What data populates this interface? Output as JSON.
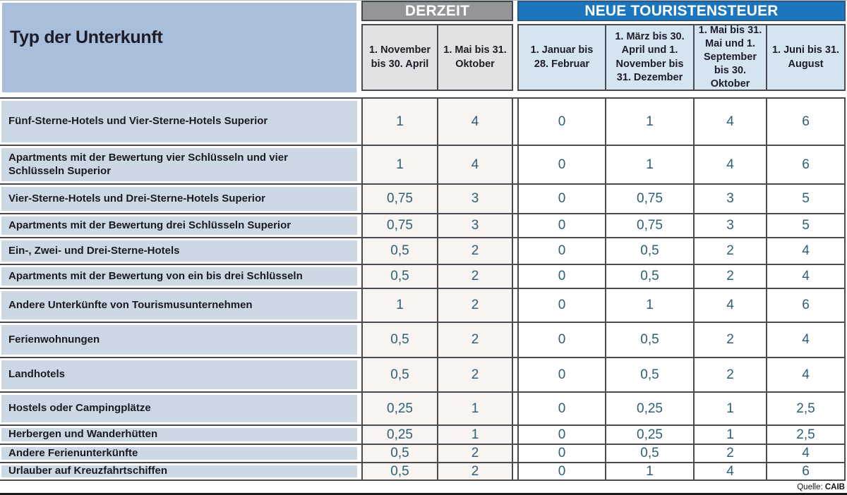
{
  "header": {
    "title": "Typ der Unterkunft",
    "groups": [
      {
        "label": "DERZEIT"
      },
      {
        "label": "NEUE TOURISTENSTEUER"
      }
    ],
    "columns": [
      "1. November bis 30. April",
      "1. Mai bis 31. Oktober",
      "1. Januar bis 28. Februar",
      "1. März bis 30. April und 1. November bis 31. Dezember",
      "1. Mai bis 31. Mai und 1. September bis 30. Oktober",
      "1. Juni bis 31. August"
    ]
  },
  "table": {
    "rows": [
      {
        "label": "Fünf-Sterne-Hotels und Vier-Sterne-Hotels Superior",
        "values": [
          "1",
          "4",
          "0",
          "1",
          "4",
          "6"
        ]
      },
      {
        "label": "Apartments mit der Bewertung vier Schlüsseln und vier Schlüsseln Superior",
        "values": [
          "1",
          "4",
          "0",
          "1",
          "4",
          "6"
        ]
      },
      {
        "label": "Vier-Sterne-Hotels und Drei-Sterne-Hotels Superior",
        "values": [
          "0,75",
          "3",
          "0",
          "0,75",
          "3",
          "5"
        ]
      },
      {
        "label": "Apartments mit der Bewertung drei Schlüsseln Superior",
        "values": [
          "0,75",
          "3",
          "0",
          "0,75",
          "3",
          "5"
        ]
      },
      {
        "label": "Ein-, Zwei- und Drei-Sterne-Hotels",
        "values": [
          "0,5",
          "2",
          "0",
          "0,5",
          "2",
          "4"
        ]
      },
      {
        "label": "Apartments mit der Bewertung von ein bis drei Schlüsseln",
        "values": [
          "0,5",
          "2",
          "0",
          "0,5",
          "2",
          "4"
        ]
      },
      {
        "label": "Andere Unterkünfte von Tourismusunternehmen",
        "values": [
          "1",
          "2",
          "0",
          "1",
          "4",
          "6"
        ]
      },
      {
        "label": "Ferienwohnungen",
        "values": [
          "0,5",
          "2",
          "0",
          "0,5",
          "2",
          "4"
        ]
      },
      {
        "label": "Landhotels",
        "values": [
          "0,5",
          "2",
          "0",
          "0,5",
          "2",
          "4"
        ]
      },
      {
        "label": "Hostels oder Campingplätze",
        "values": [
          "0,25",
          "1",
          "0",
          "0,25",
          "1",
          "2,5"
        ]
      },
      {
        "label": "Herbergen und Wanderhütten",
        "values": [
          "0,25",
          "1",
          "0",
          "0,25",
          "1",
          "2,5"
        ]
      },
      {
        "label": "Andere Ferienunterkünfte",
        "values": [
          "0,5",
          "2",
          "0",
          "0,5",
          "2",
          "4"
        ]
      },
      {
        "label": "Urlauber auf Kreuzfahrtschiffen",
        "values": [
          "0,5",
          "2",
          "0",
          "1",
          "4",
          "6"
        ]
      }
    ]
  },
  "footer": {
    "source_label": "Quelle:",
    "source_value": "CAIB"
  },
  "colors": {
    "group_gray": "#939598",
    "group_blue": "#1c76bd",
    "subheader_gray": "#e2e2e4",
    "subheader_blue": "#d5e4f1",
    "label_column": "#ccd8e4",
    "title_panel": "#a8bedb",
    "derzeit_cell": "#f8f4f1",
    "neue_cell": "#ffffff",
    "value_text": "#2d5f78",
    "border": "#4a4b4f"
  },
  "chart_data": {
    "type": "table",
    "title": "Typ der Unterkunft",
    "column_groups": [
      {
        "name": "DERZEIT",
        "span": 2
      },
      {
        "name": "NEUE TOURISTENSTEUER",
        "span": 4
      }
    ],
    "columns": [
      "1. November bis 30. April",
      "1. Mai bis 31. Oktober",
      "1. Januar bis 28. Februar",
      "1. März bis 30. April und 1. November bis 31. Dezember",
      "1. Mai bis 31. Mai und 1. September bis 30. Oktober",
      "1. Juni bis 31. August"
    ],
    "rows": [
      {
        "label": "Fünf-Sterne-Hotels und Vier-Sterne-Hotels Superior",
        "values": [
          1,
          4,
          0,
          1,
          4,
          6
        ]
      },
      {
        "label": "Apartments mit der Bewertung vier Schlüsseln und vier Schlüsseln Superior",
        "values": [
          1,
          4,
          0,
          1,
          4,
          6
        ]
      },
      {
        "label": "Vier-Sterne-Hotels und Drei-Sterne-Hotels Superior",
        "values": [
          0.75,
          3,
          0,
          0.75,
          3,
          5
        ]
      },
      {
        "label": "Apartments mit der Bewertung drei Schlüsseln Superior",
        "values": [
          0.75,
          3,
          0,
          0.75,
          3,
          5
        ]
      },
      {
        "label": "Ein-, Zwei- und Drei-Sterne-Hotels",
        "values": [
          0.5,
          2,
          0,
          0.5,
          2,
          4
        ]
      },
      {
        "label": "Apartments mit der Bewertung von ein bis drei Schlüsseln",
        "values": [
          0.5,
          2,
          0,
          0.5,
          2,
          4
        ]
      },
      {
        "label": "Andere Unterkünfte von Tourismusunternehmen",
        "values": [
          1,
          2,
          0,
          1,
          4,
          6
        ]
      },
      {
        "label": "Ferienwohnungen",
        "values": [
          0.5,
          2,
          0,
          0.5,
          2,
          4
        ]
      },
      {
        "label": "Landhotels",
        "values": [
          0.5,
          2,
          0,
          0.5,
          2,
          4
        ]
      },
      {
        "label": "Hostels oder Campingplätze",
        "values": [
          0.25,
          1,
          0,
          0.25,
          1,
          2.5
        ]
      },
      {
        "label": "Herbergen und Wanderhütten",
        "values": [
          0.25,
          1,
          0,
          0.25,
          1,
          2.5
        ]
      },
      {
        "label": "Andere Ferienunterkünfte",
        "values": [
          0.5,
          2,
          0,
          0.5,
          2,
          4
        ]
      },
      {
        "label": "Urlauber auf Kreuzfahrtschiffen",
        "values": [
          0.5,
          2,
          0,
          1,
          4,
          6
        ]
      }
    ],
    "source": "Quelle: CAIB"
  }
}
